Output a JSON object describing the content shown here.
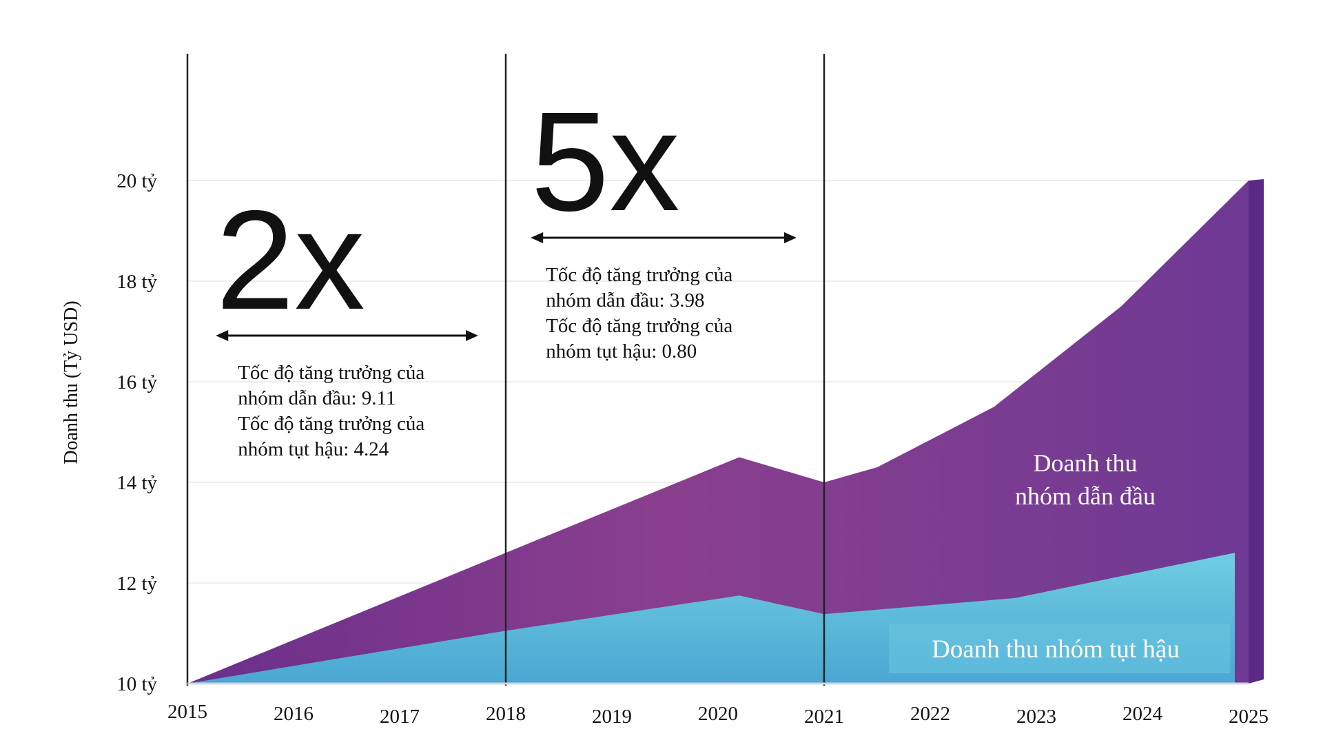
{
  "chart_data": {
    "type": "area",
    "ylabel": "Doanh thu (Tỷ USD)",
    "xlabel": "",
    "title": "",
    "ylim": [
      10,
      22
    ],
    "y_ticks": [
      {
        "value": 10,
        "label": "10 tỷ"
      },
      {
        "value": 12,
        "label": "12 tỷ"
      },
      {
        "value": 14,
        "label": "14 tỷ"
      },
      {
        "value": 16,
        "label": "16 tỷ"
      },
      {
        "value": 18,
        "label": "18 tỷ"
      },
      {
        "value": 20,
        "label": "20 tỷ"
      }
    ],
    "x_ticks": [
      "2015",
      "2016",
      "2017",
      "2018",
      "2019",
      "2020",
      "2021",
      "2022",
      "2023",
      "2024",
      "2025"
    ],
    "series": [
      {
        "name": "Doanh thu nhóm dẫn đầu",
        "color": "#7b3f91",
        "points": [
          [
            2015,
            10.0
          ],
          [
            2018,
            12.6
          ],
          [
            2020.2,
            14.5
          ],
          [
            2021,
            14.0
          ],
          [
            2021.5,
            14.3
          ],
          [
            2022.6,
            15.5
          ],
          [
            2023.8,
            17.5
          ],
          [
            2025,
            20.0
          ]
        ]
      },
      {
        "name": "Doanh thu nhóm tụt hậu",
        "color": "#5bbdd8",
        "points": [
          [
            2015,
            10.0
          ],
          [
            2018,
            11.05
          ],
          [
            2020.2,
            11.75
          ],
          [
            2021,
            11.38
          ],
          [
            2022.8,
            11.7
          ],
          [
            2025,
            12.6
          ]
        ]
      }
    ],
    "annotations": [
      {
        "big": "2x",
        "span": [
          2015.3,
          2018
        ],
        "lines": [
          "Tốc độ tăng trưởng của",
          "nhóm dẫn đầu: 9.11",
          "Tốc độ tăng trưởng của",
          "nhóm tụt hậu: 4.24"
        ]
      },
      {
        "big": "5x",
        "span": [
          2018.3,
          2021
        ],
        "lines": [
          "Tốc độ tăng trưởng của",
          "nhóm dẫn đầu: 3.98",
          "Tốc độ tăng trưởng của",
          "nhóm tụt hậu: 0.80"
        ]
      }
    ],
    "dividers": [
      2015,
      2018,
      2021
    ],
    "area_labels": {
      "leader": [
        "Doanh thu",
        "nhóm dẫn đầu"
      ],
      "laggard": "Doanh thu nhóm tụt hậu"
    },
    "grid": false,
    "legend": "none"
  }
}
